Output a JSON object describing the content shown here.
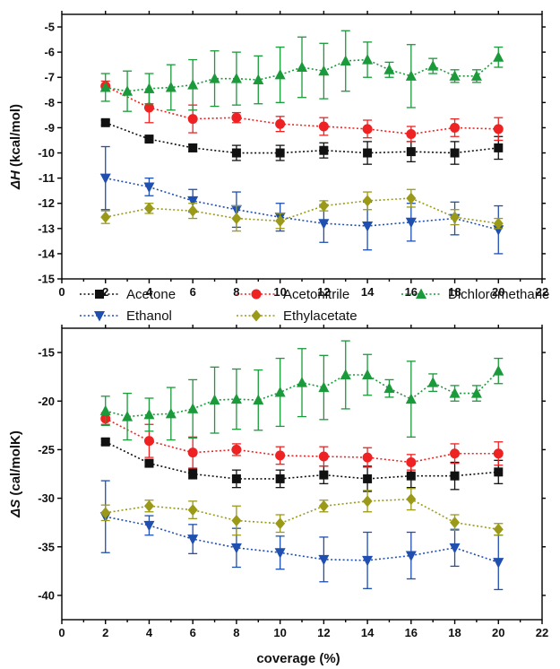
{
  "colors": {
    "Acetone": "#111111",
    "Acetonitrile": "#ee2222",
    "Dichloromethane": "#1a9a3a",
    "Ethanol": "#1f4fb0",
    "Ethylacetate": "#9a9a18"
  },
  "legend": {
    "items": [
      {
        "name": "Acetone",
        "marker": "square"
      },
      {
        "name": "Acetonitrile",
        "marker": "circle"
      },
      {
        "name": "Dichloromethane",
        "marker": "triangle-up"
      },
      {
        "name": "Ethanol",
        "marker": "triangle-down"
      },
      {
        "name": "Ethylacetate",
        "marker": "diamond"
      }
    ]
  },
  "x_axis_title": "coverage (%)",
  "chart_data": [
    {
      "type": "line",
      "ylabel_symbol": "ΔH",
      "ylabel_unit": " (kcal/mol)",
      "xlim": [
        0,
        22
      ],
      "ylim": [
        -15,
        -4.5
      ],
      "xticks": [
        0,
        2,
        4,
        6,
        8,
        10,
        12,
        14,
        16,
        18,
        20,
        22
      ],
      "yticks": [
        -15,
        -14,
        -13,
        -12,
        -11,
        -10,
        -9,
        -8,
        -7,
        -6,
        -5
      ],
      "series": [
        {
          "name": "Acetone",
          "marker": "square",
          "x": [
            2,
            4,
            6,
            8,
            10,
            12,
            14,
            16,
            18,
            20
          ],
          "y": [
            -8.8,
            -9.45,
            -9.8,
            -10.0,
            -10.0,
            -9.9,
            -10.0,
            -9.95,
            -10.0,
            -9.8
          ],
          "err": [
            0.1,
            0.1,
            0.15,
            0.3,
            0.3,
            0.3,
            0.45,
            0.4,
            0.45,
            0.45
          ]
        },
        {
          "name": "Acetonitrile",
          "marker": "circle",
          "x": [
            2,
            4,
            6,
            8,
            10,
            12,
            14,
            16,
            18,
            20
          ],
          "y": [
            -7.35,
            -8.2,
            -8.65,
            -8.6,
            -8.85,
            -8.95,
            -9.05,
            -9.25,
            -9.0,
            -9.05
          ],
          "err": [
            0.2,
            0.6,
            0.55,
            0.2,
            0.3,
            0.35,
            0.35,
            0.3,
            0.35,
            0.45
          ]
        },
        {
          "name": "Dichloromethane",
          "marker": "triangle-up",
          "x": [
            2,
            3,
            4,
            5,
            6,
            7,
            8,
            9,
            10,
            11,
            12,
            13,
            14,
            15,
            16,
            17,
            18,
            19,
            20
          ],
          "y": [
            -7.4,
            -7.55,
            -7.45,
            -7.4,
            -7.3,
            -7.05,
            -7.05,
            -7.1,
            -6.9,
            -6.6,
            -6.75,
            -6.35,
            -6.3,
            -6.7,
            -6.95,
            -6.55,
            -6.95,
            -6.95,
            -6.2
          ],
          "err": [
            0.55,
            0.8,
            0.6,
            0.9,
            1.0,
            1.1,
            1.05,
            0.95,
            1.1,
            1.2,
            1.1,
            1.2,
            0.7,
            0.3,
            1.25,
            0.3,
            0.25,
            0.25,
            0.4
          ]
        },
        {
          "name": "Ethanol",
          "marker": "triangle-down",
          "x": [
            2,
            4,
            6,
            8,
            10,
            12,
            14,
            16,
            18,
            20
          ],
          "y": [
            -11.0,
            -11.35,
            -11.9,
            -12.25,
            -12.55,
            -12.8,
            -12.9,
            -12.75,
            -12.6,
            -13.05
          ],
          "err": [
            1.25,
            0.35,
            0.45,
            0.7,
            0.55,
            0.75,
            0.95,
            0.75,
            0.65,
            0.95
          ]
        },
        {
          "name": "Ethylacetate",
          "marker": "diamond",
          "x": [
            2,
            4,
            6,
            8,
            10,
            12,
            14,
            16,
            18,
            20
          ],
          "y": [
            -12.55,
            -12.2,
            -12.3,
            -12.6,
            -12.7,
            -12.1,
            -11.9,
            -11.8,
            -12.55,
            -12.8
          ],
          "err": [
            0.25,
            0.2,
            0.3,
            0.5,
            0.3,
            0.2,
            0.35,
            0.35,
            0.3,
            0.2
          ]
        }
      ]
    },
    {
      "type": "line",
      "ylabel_symbol": "ΔS",
      "ylabel_unit": " (cal/molK)",
      "xlim": [
        0,
        22
      ],
      "ylim": [
        -42.5,
        -12.5
      ],
      "xticks": [
        0,
        2,
        4,
        6,
        8,
        10,
        12,
        14,
        16,
        18,
        20,
        22
      ],
      "yticks": [
        -40,
        -35,
        -30,
        -25,
        -20,
        -15
      ],
      "series": [
        {
          "name": "Acetone",
          "marker": "square",
          "x": [
            2,
            4,
            6,
            8,
            10,
            12,
            14,
            16,
            18,
            20
          ],
          "y": [
            -24.2,
            -26.4,
            -27.5,
            -28.0,
            -28.0,
            -27.6,
            -28.0,
            -27.7,
            -27.7,
            -27.3
          ],
          "err": [
            0.3,
            0.3,
            0.5,
            0.9,
            0.9,
            0.9,
            1.3,
            1.2,
            1.4,
            1.2
          ]
        },
        {
          "name": "Acetonitrile",
          "marker": "circle",
          "x": [
            2,
            4,
            6,
            8,
            10,
            12,
            14,
            16,
            18,
            20
          ],
          "y": [
            -21.8,
            -24.1,
            -25.3,
            -25.0,
            -25.6,
            -25.7,
            -25.8,
            -26.3,
            -25.4,
            -25.4
          ],
          "err": [
            0.6,
            1.7,
            1.6,
            0.6,
            0.9,
            1.0,
            1.0,
            0.8,
            1.0,
            1.2
          ]
        },
        {
          "name": "Dichloromethane",
          "marker": "triangle-up",
          "x": [
            2,
            3,
            4,
            5,
            6,
            7,
            8,
            9,
            10,
            11,
            12,
            13,
            14,
            15,
            16,
            17,
            18,
            19,
            20
          ],
          "y": [
            -21.0,
            -21.6,
            -21.4,
            -21.3,
            -20.8,
            -19.9,
            -19.8,
            -19.9,
            -19.1,
            -18.1,
            -18.6,
            -17.3,
            -17.3,
            -18.7,
            -19.8,
            -18.1,
            -19.2,
            -19.2,
            -16.9
          ],
          "err": [
            1.5,
            2.4,
            1.7,
            2.7,
            3.0,
            3.4,
            3.1,
            3.1,
            3.5,
            3.5,
            3.3,
            3.5,
            2.1,
            0.9,
            3.9,
            0.9,
            0.8,
            0.8,
            1.3
          ]
        },
        {
          "name": "Ethanol",
          "marker": "triangle-down",
          "x": [
            2,
            4,
            6,
            8,
            10,
            12,
            14,
            16,
            18,
            20
          ],
          "y": [
            -31.9,
            -32.8,
            -34.2,
            -35.1,
            -35.6,
            -36.3,
            -36.4,
            -35.9,
            -35.1,
            -36.6
          ],
          "err": [
            3.7,
            1.0,
            1.5,
            2.0,
            1.7,
            2.3,
            2.9,
            2.4,
            1.9,
            2.8
          ]
        },
        {
          "name": "Ethylacetate",
          "marker": "diamond",
          "x": [
            2,
            4,
            6,
            8,
            10,
            12,
            14,
            16,
            18,
            20
          ],
          "y": [
            -31.5,
            -30.8,
            -31.2,
            -32.3,
            -32.6,
            -30.8,
            -30.3,
            -30.1,
            -32.5,
            -33.2
          ],
          "err": [
            0.8,
            0.6,
            0.9,
            1.5,
            0.9,
            0.6,
            1.1,
            1.1,
            0.8,
            0.6
          ]
        }
      ]
    }
  ]
}
